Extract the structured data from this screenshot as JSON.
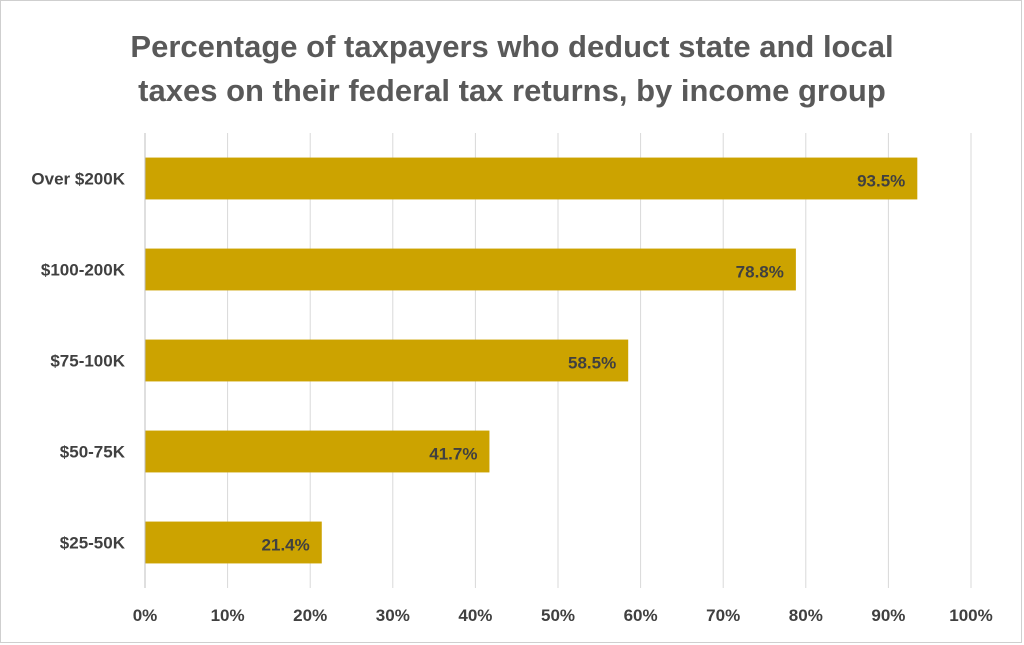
{
  "chart_data": {
    "type": "bar",
    "orientation": "horizontal",
    "title_lines": [
      "Percentage of taxpayers who deduct state and local",
      "taxes on their federal tax returns, by income group"
    ],
    "categories": [
      "Over $200K",
      "$100-200K",
      "$75-100K",
      "$50-75K",
      "$25-50K"
    ],
    "values": [
      93.5,
      78.8,
      58.5,
      41.7,
      21.4
    ],
    "data_labels": [
      "93.5%",
      "78.8%",
      "58.5%",
      "41.7%",
      "21.4%"
    ],
    "x_ticks": [
      "0%",
      "10%",
      "20%",
      "30%",
      "40%",
      "50%",
      "60%",
      "70%",
      "80%",
      "90%",
      "100%"
    ],
    "xlim": [
      0,
      100
    ],
    "xlabel": "",
    "ylabel": "",
    "grid": true,
    "legend": "none",
    "bar_color": "#cca300"
  }
}
